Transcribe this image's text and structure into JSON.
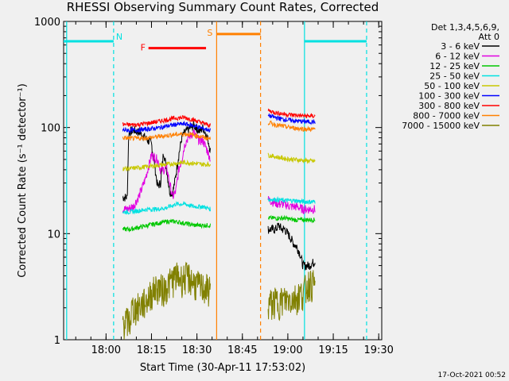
{
  "chart_data": {
    "type": "line",
    "title": "RHESSI Observing Summary Count Rates, Corrected",
    "xlabel": "Start Time (30-Apr-11 17:53:02)",
    "ylabel": "Corrected Count Rate (s⁻¹ detector⁻¹)",
    "y_scale": "log",
    "ylim": [
      1,
      1000
    ],
    "y_ticks": [
      1,
      10,
      100,
      1000
    ],
    "y_tick_labels": [
      "1",
      "10",
      "100",
      "1000"
    ],
    "xlim_min": [
      -7,
      98
    ],
    "x_ticks_min": [
      7,
      22,
      37,
      52,
      67,
      82,
      97
    ],
    "x_tick_labels": [
      "18:00",
      "18:15",
      "18:30",
      "18:45",
      "19:00",
      "19:15",
      "19:30"
    ],
    "legend": {
      "header": [
        "Det 1,3,4,5,6,9,",
        "Att 0"
      ],
      "position": "right"
    },
    "series": [
      {
        "name": "3 - 6 keV",
        "color": "#000000",
        "segments": [
          {
            "x": [
              12.5,
              14,
              14.5,
              16,
              18,
              20,
              22,
              23,
              24,
              25,
              26,
              27,
              28,
              29,
              30,
              31,
              32,
              33,
              34,
              35,
              36,
              37,
              38,
              39,
              40.5,
              41.5
            ],
            "y": [
              22,
              22,
              90,
              95,
              90,
              80,
              70,
              45,
              28,
              30,
              60,
              40,
              25,
              24,
              35,
              55,
              80,
              90,
              95,
              100,
              105,
              98,
              92,
              100,
              80,
              60
            ]
          },
          {
            "x": [
              60.5,
              61,
              62,
              63,
              64,
              65,
              66,
              67,
              68,
              69,
              70,
              71,
              72,
              74,
              76
            ],
            "y": [
              11,
              11,
              11,
              11,
              12,
              11,
              11,
              10,
              9,
              8,
              7.5,
              6.5,
              5,
              5,
              5.5
            ]
          }
        ]
      },
      {
        "name": "6 - 12 keV",
        "color": "#e100e1",
        "segments": [
          {
            "x": [
              12.5,
              14,
              16,
              18,
              20,
              22,
              24,
              25,
              26,
              27,
              28,
              29,
              30,
              31,
              32,
              33,
              34,
              35,
              36,
              37,
              38,
              39,
              40.5,
              41.5
            ],
            "y": [
              17,
              17,
              18,
              23,
              33,
              55,
              50,
              40,
              40,
              42,
              30,
              22,
              25,
              40,
              50,
              70,
              80,
              85,
              90,
              80,
              75,
              75,
              60,
              50
            ]
          },
          {
            "x": [
              60.5,
              62,
              64,
              66,
              68,
              70,
              72,
              74,
              76
            ],
            "y": [
              21,
              20,
              19,
              19,
              18,
              18,
              17,
              17,
              17
            ]
          }
        ]
      },
      {
        "name": "12 - 25 keV",
        "color": "#00c800",
        "segments": [
          {
            "x": [
              12.5,
              15,
              18,
              21,
              24,
              27,
              30,
              33,
              36,
              39,
              41.5
            ],
            "y": [
              11,
              11,
              11.5,
              12,
              12.5,
              13,
              13,
              12.5,
              12,
              12,
              12
            ]
          },
          {
            "x": [
              60.5,
              63,
              66,
              69,
              72,
              76
            ],
            "y": [
              14,
              14,
              14,
              13.5,
              13.5,
              13.5
            ]
          }
        ]
      },
      {
        "name": "25 - 50 keV",
        "color": "#00e1e1",
        "segments": [
          {
            "x": [
              12.5,
              15,
              18,
              21,
              24,
              27,
              30,
              33,
              36,
              39,
              41.5
            ],
            "y": [
              16,
              16,
              16.5,
              17,
              17,
              17.5,
              19,
              19,
              18,
              18,
              17
            ]
          },
          {
            "x": [
              60.5,
              63,
              66,
              69,
              72,
              76
            ],
            "y": [
              21,
              21,
              20.5,
              20.5,
              20,
              20
            ]
          }
        ]
      },
      {
        "name": "50 - 100 keV",
        "color": "#c8c800",
        "segments": [
          {
            "x": [
              12.5,
              15,
              18,
              21,
              24,
              27,
              30,
              33,
              36,
              39,
              41.5
            ],
            "y": [
              41,
              41,
              42,
              43,
              44,
              45,
              46,
              47,
              46,
              45,
              45
            ]
          },
          {
            "x": [
              60.5,
              63,
              66,
              69,
              72,
              76
            ],
            "y": [
              55,
              53,
              51,
              50,
              49,
              48
            ]
          }
        ]
      },
      {
        "name": "100 - 300 keV",
        "color": "#0000ff",
        "segments": [
          {
            "x": [
              12.5,
              15,
              18,
              21,
              24,
              27,
              30,
              33,
              36,
              39,
              41.5
            ],
            "y": [
              95,
              94,
              95,
              97,
              99,
              103,
              107,
              108,
              104,
              98,
              94
            ]
          },
          {
            "x": [
              60.5,
              63,
              66,
              69,
              72,
              76
            ],
            "y": [
              130,
              124,
              119,
              116,
              114,
              113
            ]
          }
        ]
      },
      {
        "name": "300 - 800 keV",
        "color": "#ff0000",
        "segments": [
          {
            "x": [
              12.5,
              15,
              18,
              21,
              24,
              27,
              30,
              33,
              36,
              39,
              41.5
            ],
            "y": [
              107,
              106,
              107,
              110,
              114,
              118,
              123,
              124,
              118,
              110,
              104
            ]
          },
          {
            "x": [
              60.5,
              63,
              66,
              69,
              72,
              76
            ],
            "y": [
              145,
              138,
              134,
              131,
              129,
              128
            ]
          }
        ]
      },
      {
        "name": "800 - 7000 keV",
        "color": "#ff8000",
        "segments": [
          {
            "x": [
              12.5,
              15,
              18,
              21,
              24,
              27,
              30,
              33,
              36,
              39,
              41.5
            ],
            "y": [
              80,
              79,
              79,
              80,
              82,
              84,
              86,
              87,
              85,
              81,
              78
            ]
          },
          {
            "x": [
              60.5,
              63,
              66,
              69,
              72,
              76
            ],
            "y": [
              112,
              106,
              102,
              99,
              97,
              96
            ]
          }
        ]
      },
      {
        "name": "7000 - 15000 keV",
        "color": "#808000",
        "segments": [
          {
            "x": [
              12.5,
              15,
              15.5,
              17,
              20,
              22,
              24,
              26,
              28,
              30,
              32,
              34,
              36,
              38,
              41.5
            ],
            "y": [
              1.5,
              1.5,
              2,
              2,
              2.3,
              2.8,
              3.2,
              3.0,
              3.5,
              4.0,
              3.8,
              4.0,
              3.5,
              3.2,
              3.0
            ]
          },
          {
            "x": [
              60.5,
              63,
              66,
              69,
              72,
              74,
              76
            ],
            "y": [
              2.2,
              2.3,
              2.4,
              2.5,
              2.8,
              3.5,
              3.3
            ]
          }
        ]
      }
    ],
    "annotations": {
      "N": {
        "label": "N",
        "color": "#00e1e1",
        "y": 650,
        "bars": [
          [
            -7,
            9.5
          ],
          [
            72.5,
            93
          ]
        ],
        "solid_lines": [
          -6,
          72.5
        ],
        "dashed_lines": [
          9.5,
          93
        ]
      },
      "F": {
        "label": "F",
        "color": "#ff0000",
        "y": 560,
        "bars": [
          [
            21,
            40
          ]
        ]
      },
      "S": {
        "label": "S",
        "color": "#ff8000",
        "y": 760,
        "bars": [
          [
            43.5,
            58
          ]
        ],
        "solid_lines": [
          43.5
        ],
        "dashed_lines": [
          58
        ]
      }
    },
    "grid": false
  },
  "footer": {
    "timestamp": "17-Oct-2021 00:52"
  }
}
